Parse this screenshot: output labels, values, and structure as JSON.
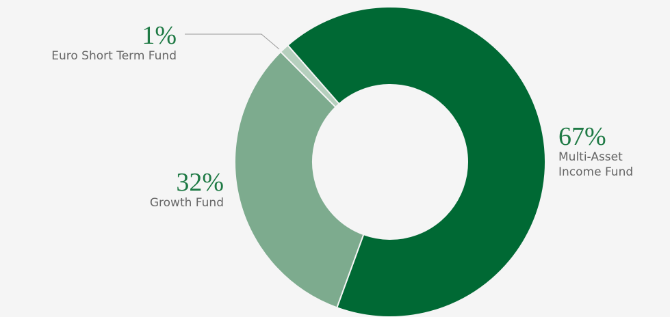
{
  "chart_data": {
    "type": "pie",
    "categories": [
      "Multi-Asset Income Fund",
      "Growth Fund",
      "Euro Short Term Fund"
    ],
    "values": [
      67,
      32,
      1
    ],
    "value_labels": [
      "67%",
      "32%",
      "1%"
    ],
    "colors": [
      "#006934",
      "#7dab8e",
      "#b5cfbd"
    ],
    "donut": true
  }
}
